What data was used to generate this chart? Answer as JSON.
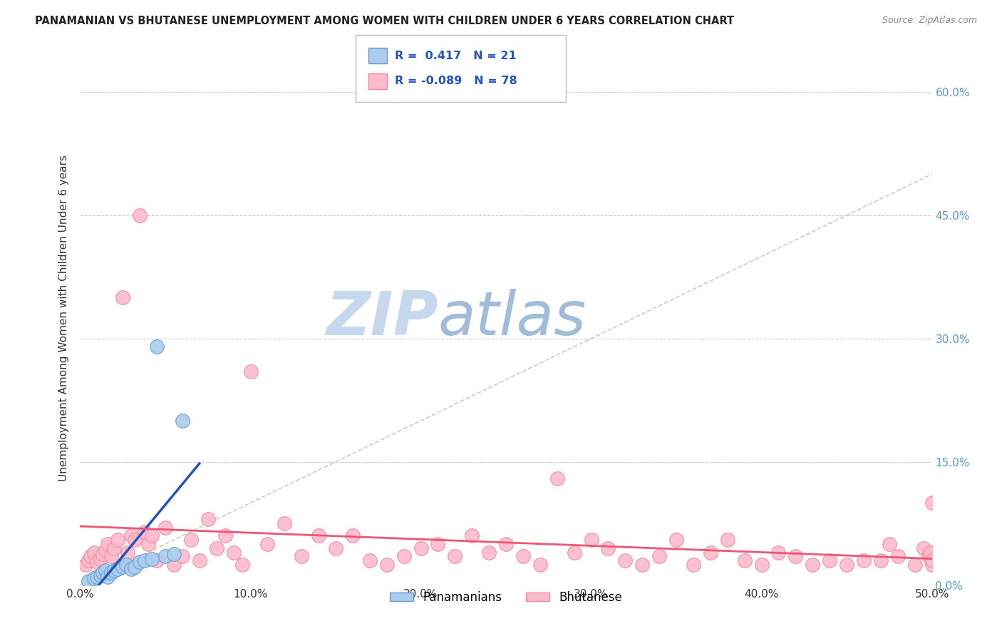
{
  "title": "PANAMANIAN VS BHUTANESE UNEMPLOYMENT AMONG WOMEN WITH CHILDREN UNDER 6 YEARS CORRELATION CHART",
  "source": "Source: ZipAtlas.com",
  "ylabel": "Unemployment Among Women with Children Under 6 years",
  "xlim": [
    0,
    0.5
  ],
  "ylim": [
    0,
    0.65
  ],
  "xticks": [
    0.0,
    0.1,
    0.2,
    0.3,
    0.4,
    0.5
  ],
  "xtick_labels": [
    "0.0%",
    "10.0%",
    "20.0%",
    "30.0%",
    "40.0%",
    "50.0%"
  ],
  "yticks_right": [
    0.0,
    0.15,
    0.3,
    0.45,
    0.6
  ],
  "ytick_labels_right": [
    "0.0%",
    "15.0%",
    "30.0%",
    "45.0%",
    "60.0%"
  ],
  "background_color": "#ffffff",
  "grid_color": "#cccccc",
  "watermark_zip": "ZIP",
  "watermark_atlas": "atlas",
  "watermark_color_zip": "#c5d8ee",
  "watermark_color_atlas": "#a0bcd8",
  "panamanian_color": "#aaccee",
  "bhutanese_color": "#ffbbcc",
  "panamanian_edge_color": "#6699cc",
  "bhutanese_edge_color": "#ee8899",
  "panamanian_line_color": "#2255bb",
  "bhutanese_line_color": "#ee5577",
  "R_pan": 0.417,
  "N_pan": 21,
  "R_bhu": -0.089,
  "N_bhu": 78,
  "pan_x": [
    0.005,
    0.008,
    0.01,
    0.012,
    0.013,
    0.015,
    0.016,
    0.018,
    0.02,
    0.022,
    0.025,
    0.027,
    0.03,
    0.032,
    0.035,
    0.038,
    0.042,
    0.045,
    0.05,
    0.055,
    0.06
  ],
  "pan_y": [
    0.005,
    0.008,
    0.01,
    0.012,
    0.015,
    0.018,
    0.01,
    0.015,
    0.018,
    0.02,
    0.022,
    0.025,
    0.02,
    0.022,
    0.028,
    0.03,
    0.032,
    0.29,
    0.035,
    0.038,
    0.2
  ],
  "bhu_x": [
    0.003,
    0.005,
    0.006,
    0.008,
    0.01,
    0.012,
    0.013,
    0.015,
    0.016,
    0.018,
    0.02,
    0.022,
    0.025,
    0.028,
    0.03,
    0.032,
    0.035,
    0.038,
    0.04,
    0.042,
    0.045,
    0.05,
    0.055,
    0.06,
    0.065,
    0.07,
    0.075,
    0.08,
    0.085,
    0.09,
    0.095,
    0.1,
    0.11,
    0.12,
    0.13,
    0.14,
    0.15,
    0.16,
    0.17,
    0.18,
    0.19,
    0.2,
    0.21,
    0.22,
    0.23,
    0.24,
    0.25,
    0.26,
    0.27,
    0.28,
    0.29,
    0.3,
    0.31,
    0.32,
    0.33,
    0.34,
    0.35,
    0.36,
    0.37,
    0.38,
    0.39,
    0.4,
    0.41,
    0.42,
    0.43,
    0.44,
    0.45,
    0.46,
    0.47,
    0.475,
    0.48,
    0.49,
    0.495,
    0.498,
    0.499,
    0.5,
    0.5,
    0.5
  ],
  "bhu_y": [
    0.025,
    0.03,
    0.035,
    0.04,
    0.028,
    0.032,
    0.038,
    0.042,
    0.05,
    0.035,
    0.045,
    0.055,
    0.35,
    0.04,
    0.06,
    0.055,
    0.45,
    0.065,
    0.05,
    0.06,
    0.03,
    0.07,
    0.025,
    0.035,
    0.055,
    0.03,
    0.08,
    0.045,
    0.06,
    0.04,
    0.025,
    0.26,
    0.05,
    0.075,
    0.035,
    0.06,
    0.045,
    0.06,
    0.03,
    0.025,
    0.035,
    0.045,
    0.05,
    0.035,
    0.06,
    0.04,
    0.05,
    0.035,
    0.025,
    0.13,
    0.04,
    0.055,
    0.045,
    0.03,
    0.025,
    0.035,
    0.055,
    0.025,
    0.04,
    0.055,
    0.03,
    0.025,
    0.04,
    0.035,
    0.025,
    0.03,
    0.025,
    0.03,
    0.03,
    0.05,
    0.035,
    0.025,
    0.045,
    0.035,
    0.04,
    0.025,
    0.03,
    0.1
  ]
}
